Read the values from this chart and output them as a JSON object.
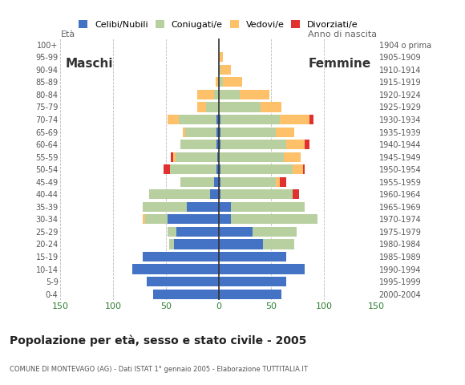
{
  "age_groups": [
    "0-4",
    "5-9",
    "10-14",
    "15-19",
    "20-24",
    "25-29",
    "30-34",
    "35-39",
    "40-44",
    "45-49",
    "50-54",
    "55-59",
    "60-64",
    "65-69",
    "70-74",
    "75-79",
    "80-84",
    "85-89",
    "90-94",
    "95-99",
    "100+"
  ],
  "birth_years": [
    "2000-2004",
    "1995-1999",
    "1990-1994",
    "1985-1989",
    "1980-1984",
    "1975-1979",
    "1970-1974",
    "1965-1969",
    "1960-1964",
    "1955-1959",
    "1950-1954",
    "1945-1949",
    "1940-1944",
    "1935-1939",
    "1930-1934",
    "1925-1929",
    "1920-1924",
    "1915-1919",
    "1910-1914",
    "1905-1909",
    "1904 o prima"
  ],
  "male": {
    "celibi": [
      62,
      68,
      82,
      72,
      42,
      40,
      48,
      30,
      8,
      4,
      2,
      1,
      2,
      2,
      2,
      0,
      0,
      0,
      0,
      0,
      0
    ],
    "coniugati": [
      0,
      0,
      0,
      0,
      5,
      8,
      22,
      42,
      58,
      32,
      44,
      40,
      34,
      30,
      36,
      12,
      4,
      0,
      0,
      0,
      0
    ],
    "vedovi": [
      0,
      0,
      0,
      0,
      0,
      0,
      2,
      0,
      0,
      0,
      0,
      2,
      0,
      2,
      10,
      8,
      16,
      3,
      0,
      0,
      0
    ],
    "divorziati": [
      0,
      0,
      0,
      0,
      0,
      0,
      0,
      0,
      0,
      0,
      6,
      2,
      0,
      0,
      0,
      0,
      0,
      0,
      0,
      0,
      0
    ]
  },
  "female": {
    "nubili": [
      60,
      64,
      82,
      64,
      42,
      32,
      12,
      12,
      2,
      2,
      2,
      0,
      2,
      2,
      2,
      0,
      0,
      0,
      0,
      0,
      0
    ],
    "coniugate": [
      0,
      0,
      0,
      0,
      30,
      42,
      82,
      70,
      68,
      52,
      68,
      62,
      62,
      52,
      56,
      40,
      20,
      4,
      2,
      0,
      0
    ],
    "vedove": [
      0,
      0,
      0,
      0,
      0,
      0,
      0,
      0,
      0,
      4,
      10,
      16,
      18,
      18,
      28,
      20,
      28,
      18,
      10,
      4,
      0
    ],
    "divorziate": [
      0,
      0,
      0,
      0,
      0,
      0,
      0,
      0,
      6,
      6,
      2,
      0,
      4,
      0,
      4,
      0,
      0,
      0,
      0,
      0,
      0
    ]
  },
  "colors": {
    "celibi": "#4472c4",
    "coniugati": "#b8cfa0",
    "vedovi": "#ffc06a",
    "divorziati": "#e03030"
  },
  "xlim": 150,
  "title": "Popolazione per età, sesso e stato civile - 2005",
  "subtitle": "COMUNE DI MONTEVAGO (AG) - Dati ISTAT 1° gennaio 2005 - Elaborazione TUTTITALIA.IT",
  "legend_labels": [
    "Celibi/Nubili",
    "Coniugati/e",
    "Vedovi/e",
    "Divorziati/e"
  ],
  "maschi_label": "Maschi",
  "femmine_label": "Femmine",
  "eta_label": "Età",
  "anno_label": "Anno di nascita",
  "xtick_positions": [
    -150,
    -100,
    -50,
    0,
    50,
    100,
    150
  ],
  "xtick_labels": [
    "150",
    "100",
    "50",
    "0",
    "50",
    "100",
    "150"
  ]
}
